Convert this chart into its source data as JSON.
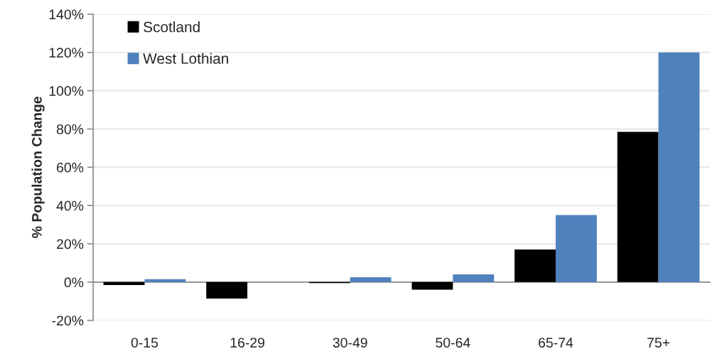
{
  "chart_data": {
    "type": "bar",
    "ylabel": "% Population Change",
    "categories": [
      "0-15",
      "16-29",
      "30-49",
      "50-64",
      "65-74",
      "75+"
    ],
    "series": [
      {
        "name": "Scotland",
        "color": "#000000",
        "values": [
          -1.5,
          -8.6,
          -0.5,
          -4,
          17,
          78.5
        ]
      },
      {
        "name": "West Lothian",
        "color": "#4f81bd",
        "values": [
          1.5,
          0,
          2.5,
          4,
          35,
          120
        ]
      }
    ],
    "ylim": [
      -20,
      140
    ],
    "yticks": [
      {
        "value": -20,
        "label": "-20%"
      },
      {
        "value": 0,
        "label": "0%"
      },
      {
        "value": 20,
        "label": "20%"
      },
      {
        "value": 40,
        "label": "40%"
      },
      {
        "value": 60,
        "label": "60%"
      },
      {
        "value": 80,
        "label": "80%"
      },
      {
        "value": 100,
        "label": "100%"
      },
      {
        "value": 120,
        "label": "120%"
      },
      {
        "value": 140,
        "label": "140%"
      }
    ],
    "grid": "y",
    "legend": "top left"
  }
}
